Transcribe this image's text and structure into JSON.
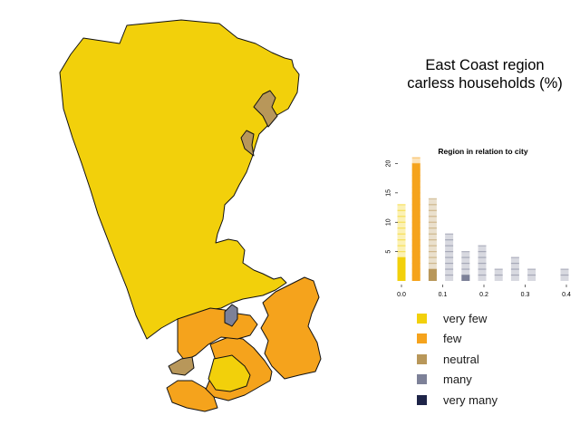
{
  "title": {
    "line1": "East Coast region",
    "line2": "carless households (%)"
  },
  "colors": {
    "very_few": "#f2d00b",
    "few": "#f5a31c",
    "neutral": "#b8975a",
    "many": "#7d8198",
    "very_many": "#1e2448"
  },
  "legend": [
    {
      "label": "very few",
      "color": "#f2d00b"
    },
    {
      "label": "few",
      "color": "#f5a31c"
    },
    {
      "label": "neutral",
      "color": "#b8975a"
    },
    {
      "label": "many",
      "color": "#7d8198"
    },
    {
      "label": "very many",
      "color": "#1e2448"
    }
  ],
  "chart_data": {
    "type": "bar",
    "title": "Region in relation to city",
    "xlim": [
      0,
      0.4
    ],
    "ylim": [
      0,
      21
    ],
    "x_ticks": [
      "0.0",
      "0.1",
      "0.2",
      "0.3",
      "0.4"
    ],
    "y_ticks": [
      "5",
      "10",
      "15",
      "20"
    ],
    "bars": [
      {
        "x": 0.0,
        "city_count": 13,
        "region_count": 4,
        "region_class": "very_few"
      },
      {
        "x": 0.04,
        "city_count": 21,
        "region_count": 20,
        "region_class": "few"
      },
      {
        "x": 0.08,
        "city_count": 14,
        "region_count": 2,
        "region_class": "neutral"
      },
      {
        "x": 0.12,
        "city_count": 8,
        "region_count": 0,
        "region_class": "many"
      },
      {
        "x": 0.16,
        "city_count": 5,
        "region_count": 1,
        "region_class": "many"
      },
      {
        "x": 0.2,
        "city_count": 6,
        "region_count": 0,
        "region_class": "many"
      },
      {
        "x": 0.24,
        "city_count": 2,
        "region_count": 0,
        "region_class": "many"
      },
      {
        "x": 0.28,
        "city_count": 4,
        "region_count": 0,
        "region_class": "many"
      },
      {
        "x": 0.32,
        "city_count": 2,
        "region_count": 0,
        "region_class": "many"
      },
      {
        "x": 0.4,
        "city_count": 2,
        "region_count": 0,
        "region_class": "many"
      }
    ]
  },
  "map_regions": [
    {
      "id": "northern-rural",
      "class": "very_few"
    },
    {
      "id": "eastern-town",
      "class": "neutral"
    },
    {
      "id": "coastal-strip",
      "class": "neutral"
    },
    {
      "id": "harbour-east",
      "class": "few"
    },
    {
      "id": "harbour-south",
      "class": "few"
    },
    {
      "id": "harbour-west",
      "class": "few"
    },
    {
      "id": "inner-city",
      "class": "many"
    },
    {
      "id": "southern-suburb",
      "class": "very_few"
    },
    {
      "id": "southwest-point",
      "class": "neutral"
    }
  ]
}
